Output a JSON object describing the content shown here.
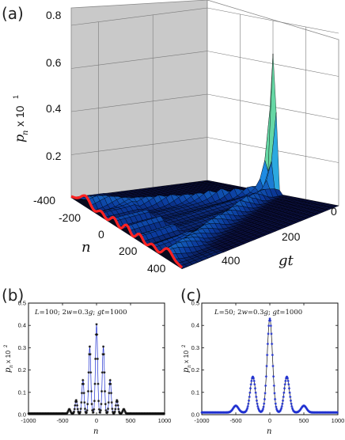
{
  "chart_data": [
    {
      "panel": "(a)",
      "type": "surface",
      "zlabel": "p_n x 10^1",
      "zlabel_base": "p",
      "zlabel_sub": "n",
      "zlabel_mult": "x 10",
      "zlabel_exp": "1",
      "xlabel": "n",
      "ylabel": "gt",
      "zticks": [
        "0.2",
        "0.4",
        "0.6",
        "0.8"
      ],
      "xticks": [
        "-400",
        "-200",
        "0",
        "200",
        "400"
      ],
      "yticks": [
        "0",
        "200",
        "400"
      ],
      "zlim": [
        0,
        0.8
      ],
      "xlim": [
        -400,
        400
      ],
      "ylim": [
        0,
        500
      ],
      "colormap": [
        "#0a0f3c",
        "#0b3a9c",
        "#1f8fe6",
        "#3fd0d8",
        "#9be05a",
        "#e8f23a"
      ],
      "edge_color": "#ff2222",
      "peak_value": 0.75
    },
    {
      "panel": "(b)",
      "type": "scatter",
      "annotation_html": "L=100; 2w=0.3g; gt=1000",
      "L": 100,
      "two_w": 0.3,
      "gt": 1000,
      "xlabel": "n",
      "ylabel_base": "p",
      "ylabel_sub": "n",
      "ylabel_mult": "x 10",
      "ylabel_exp": "2",
      "xlim": [
        -1000,
        1000
      ],
      "ylim": [
        0,
        0.5
      ],
      "xticks": [
        "-1000",
        "-500",
        "0",
        "500",
        "1000"
      ],
      "xtick_values": [
        -1000,
        -500,
        0,
        500,
        1000
      ],
      "yticks": [
        "0.0",
        "0.1",
        "0.2",
        "0.3",
        "0.4",
        "0.5"
      ],
      "ytick_values": [
        0,
        0.1,
        0.2,
        0.3,
        0.4,
        0.5
      ],
      "marker_color": "#111111",
      "line_color": "#1e2fd0",
      "peaks": [
        {
          "x": -400,
          "y": 0.02
        },
        {
          "x": -300,
          "y": 0.06
        },
        {
          "x": -200,
          "y": 0.15
        },
        {
          "x": -100,
          "y": 0.3
        },
        {
          "x": 0,
          "y": 0.4
        },
        {
          "x": 100,
          "y": 0.3
        },
        {
          "x": 200,
          "y": 0.15
        },
        {
          "x": 300,
          "y": 0.06
        },
        {
          "x": 400,
          "y": 0.02
        }
      ],
      "peak_width": 22,
      "background": 0.005
    },
    {
      "panel": "(c)",
      "type": "scatter",
      "annotation_html": "L=50; 2w=0.3g; gt=1000",
      "L": 50,
      "two_w": 0.3,
      "gt": 1000,
      "xlabel": "n",
      "ylabel_base": "p",
      "ylabel_sub": "n",
      "ylabel_mult": "x 10",
      "ylabel_exp": "2",
      "xlim": [
        -1000,
        1000
      ],
      "ylim": [
        0,
        0.5
      ],
      "xticks": [
        "-1000",
        "-500",
        "0",
        "500",
        "1000"
      ],
      "xtick_values": [
        -1000,
        -500,
        0,
        500,
        1000
      ],
      "yticks": [
        "0.0",
        "0.1",
        "0.2",
        "0.3",
        "0.4",
        "0.5"
      ],
      "ytick_values": [
        0,
        0.1,
        0.2,
        0.3,
        0.4,
        0.5
      ],
      "marker_color": "#1e2fd0",
      "line_color": "#111111",
      "peaks": [
        {
          "x": -500,
          "y": 0.03
        },
        {
          "x": -250,
          "y": 0.16
        },
        {
          "x": 0,
          "y": 0.42
        },
        {
          "x": 250,
          "y": 0.16
        },
        {
          "x": 500,
          "y": 0.03
        }
      ],
      "peak_width": 55,
      "background": 0.01
    }
  ]
}
